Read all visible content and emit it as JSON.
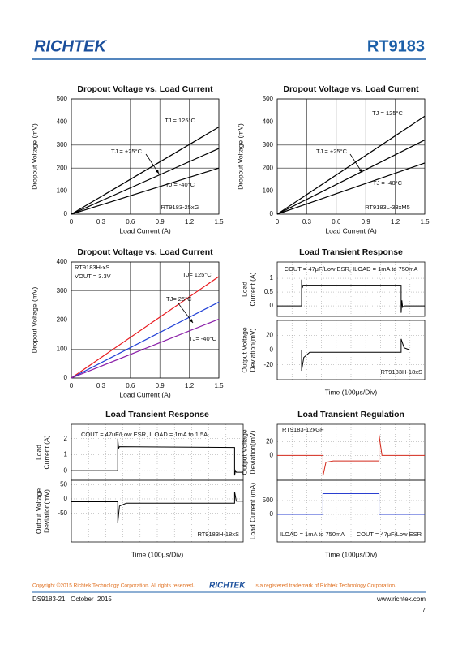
{
  "header": {
    "logo": "RICHTEK",
    "part": "RT9183"
  },
  "footer": {
    "copyright": "Copyright ©2015 Richtek Technology Corporation. All rights reserved.",
    "logo": "RICHTEK",
    "trademark": "is a registered trademark of Richtek Technology Corporation.",
    "doc": "DS9183-21   October  2015",
    "url": "www.richtek.com",
    "page": "7"
  },
  "chart_data": [
    {
      "type": "line",
      "title": "Dropout Voltage vs. Load Current",
      "xlabel": "Load Current (A)",
      "ylabel": "Dropout Voltage (mV)",
      "x": [
        0,
        1.5
      ],
      "xlim": [
        0,
        1.5
      ],
      "xticks": [
        0,
        0.3,
        0.6,
        0.9,
        1.2,
        1.5
      ],
      "ylim": [
        0,
        500
      ],
      "yticks": [
        0,
        100,
        200,
        300,
        400,
        500
      ],
      "grid": true,
      "series": [
        {
          "color": "#000000",
          "values": [
            0,
            378
          ]
        },
        {
          "color": "#000000",
          "values": [
            0,
            285
          ]
        },
        {
          "color": "#000000",
          "values": [
            0,
            200
          ]
        }
      ],
      "annotations": [
        "TJ = 125°C",
        "TJ = +25°C",
        "TJ = -40°C",
        "RT9183-25xG"
      ]
    },
    {
      "type": "line",
      "title": "Dropout Voltage vs. Load Current",
      "xlabel": "Load Current (A)",
      "ylabel": "Dropout Voltage (mV)",
      "x": [
        0,
        1.5
      ],
      "xlim": [
        0,
        1.5
      ],
      "xticks": [
        0,
        0.3,
        0.6,
        0.9,
        1.2,
        1.5
      ],
      "ylim": [
        0,
        500
      ],
      "yticks": [
        0,
        100,
        200,
        300,
        400,
        500
      ],
      "grid": true,
      "series": [
        {
          "color": "#000000",
          "values": [
            0,
            425
          ]
        },
        {
          "color": "#000000",
          "values": [
            0,
            322
          ]
        },
        {
          "color": "#000000",
          "values": [
            0,
            222
          ]
        }
      ],
      "annotations": [
        "TJ = 125°C",
        "TJ = +25°C",
        "TJ = -40°C",
        "RT9183L-33xM5"
      ]
    },
    {
      "type": "line",
      "title": "Dropout Voltage vs. Load Current",
      "xlabel": "Load Current (A)",
      "ylabel": "Dropout Voltage (mV)",
      "x": [
        0,
        1.5
      ],
      "xlim": [
        0,
        1.5
      ],
      "xticks": [
        0,
        0.3,
        0.6,
        0.9,
        1.2,
        1.5
      ],
      "ylim": [
        0,
        400
      ],
      "yticks": [
        0,
        100,
        200,
        300,
        400
      ],
      "grid": true,
      "series": [
        {
          "color": "#e8191e",
          "values": [
            0,
            350
          ]
        },
        {
          "color": "#1f3fd6",
          "values": [
            0,
            262
          ]
        },
        {
          "color": "#8a1fa8",
          "values": [
            0,
            203
          ]
        }
      ],
      "annotations": [
        "RT9183H-xS",
        "VOUT = 3.3V",
        "TJ= 125°C",
        "TJ= 25°C",
        "TJ= -40°C"
      ]
    },
    {
      "type": "scope",
      "title": "Load Transient Response",
      "xlabel": "Time (100μs/Div)",
      "xlim": [
        0,
        10
      ],
      "panels": [
        {
          "ylabel": [
            "Load",
            "Current (A)"
          ],
          "ylim": [
            -0.38,
            1.59
          ],
          "yticks": [
            0,
            0.5,
            1
          ],
          "series": [
            {
              "color": "#000000",
              "x": [
                0,
                1.65,
                1.65,
                1.7,
                1.75,
                8.4,
                8.4,
                8.45,
                8.5,
                8.6,
                10
              ],
              "values": [
                0,
                0,
                0.95,
                0.65,
                0.75,
                0.75,
                -0.25,
                0.2,
                -0.05,
                0,
                0
              ]
            }
          ]
        },
        {
          "ylabel": [
            "Output Voltage",
            "Deviation(mV)"
          ],
          "ylim": [
            -40,
            40
          ],
          "yticks": [
            -20,
            0,
            20
          ],
          "series": [
            {
              "color": "#000000",
              "x": [
                0,
                1.65,
                1.65,
                1.8,
                2.2,
                8.4,
                8.4,
                8.6,
                9,
                10
              ],
              "values": [
                0,
                0,
                -28,
                -10,
                -3,
                -3,
                15,
                3,
                0,
                0
              ]
            }
          ]
        }
      ],
      "annotations": [
        "COUT = 47μF/Low ESR, ILOAD = 1mA to 750mA",
        "RT9183H-18xS"
      ]
    },
    {
      "type": "scope",
      "title": "Load Transient Response",
      "xlabel": "Time (100μs/Div)",
      "xlim": [
        0,
        10
      ],
      "panels": [
        {
          "ylabel": [
            "Load",
            "Current (A)"
          ],
          "ylim": [
            -0.6,
            2.9
          ],
          "yticks": [
            0,
            1,
            2
          ],
          "series": [
            {
              "color": "#000000",
              "x": [
                0,
                2.7,
                2.7,
                2.75,
                2.8,
                9.5,
                9.5,
                9.55,
                9.6,
                10
              ],
              "values": [
                0,
                0,
                2.0,
                1.4,
                1.5,
                1.45,
                -0.3,
                0,
                -0.1,
                -0.1
              ]
            }
          ]
        },
        {
          "ylabel": [
            "Output Voltage",
            "Deviation(mV)"
          ],
          "ylim": [
            -150,
            65
          ],
          "yticks": [
            -50,
            0,
            50
          ],
          "series": [
            {
              "color": "#000000",
              "x": [
                0,
                2.7,
                2.7,
                2.8,
                3.2,
                9.5,
                9.5,
                9.6,
                10
              ],
              "values": [
                -10,
                -10,
                -85,
                -25,
                -15,
                -15,
                25,
                -8,
                -8
              ]
            }
          ]
        }
      ],
      "annotations": [
        "COUT = 47uF/Low ESR, ILOAD = 1mA to 1.5A",
        "RT9183H-18xS"
      ]
    },
    {
      "type": "scope",
      "title": "Load Transient Regulation",
      "xlabel": "Time (100μs/Div)",
      "xlim": [
        0,
        10
      ],
      "panels": [
        {
          "ylabel": [
            "Output Voltage",
            "Deviation(mV)"
          ],
          "ylim": [
            -36,
            45
          ],
          "yticks": [
            0,
            20
          ],
          "series": [
            {
              "color": "#d42a1c",
              "x": [
                0,
                3.1,
                3.1,
                3.3,
                3.8,
                6.9,
                6.9,
                7.1,
                10
              ],
              "values": [
                0,
                0,
                -30,
                -10,
                -8,
                -8,
                30,
                0,
                0
              ]
            }
          ]
        },
        {
          "ylabel": [
            "Load Current (mA)"
          ],
          "ylim": [
            -1000,
            1235
          ],
          "yticks": [
            0,
            500
          ],
          "series": [
            {
              "color": "#2a3fd0",
              "x": [
                0,
                3.1,
                3.1,
                6.9,
                6.9,
                10
              ],
              "values": [
                0,
                0,
                750,
                750,
                0,
                0
              ]
            }
          ]
        }
      ],
      "annotations": [
        "RT9183-12xGF",
        "ILOAD = 1mA to 750mA",
        "COUT = 47μF/Low ESR"
      ]
    }
  ]
}
